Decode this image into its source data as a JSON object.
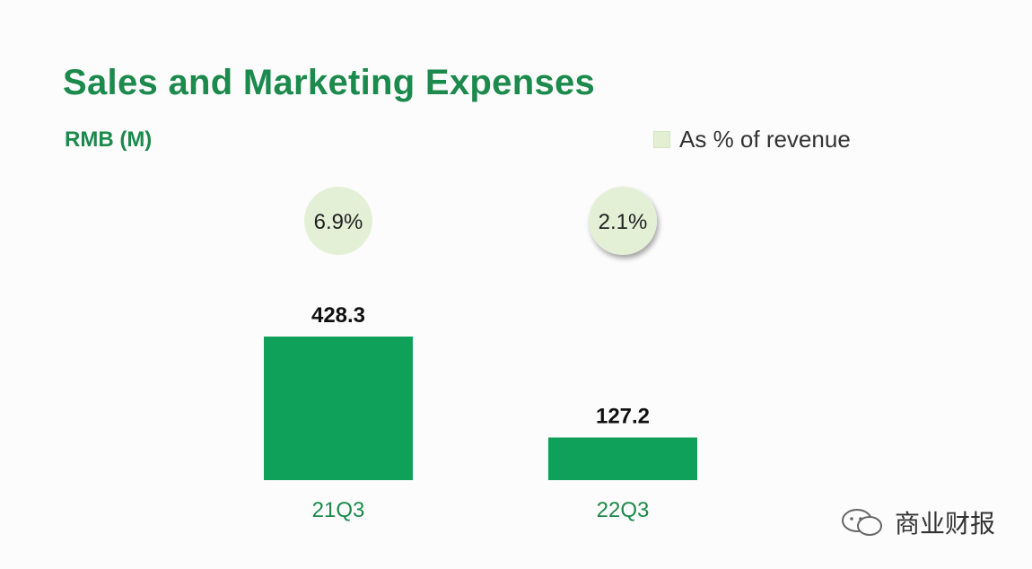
{
  "slide": {
    "title": "Sales and Marketing Expenses",
    "unit_label": "RMB (M)",
    "legend_label": "As % of revenue",
    "watermark": "商业财报"
  },
  "colors": {
    "bar": "#0fa15a",
    "bubble": "#e4f0d6",
    "title": "#1c8a4c",
    "legend_swatch": "#e3efd3"
  },
  "chart_data": {
    "type": "bar",
    "title": "Sales and Marketing Expenses",
    "ylabel": "RMB (M)",
    "categories": [
      "21Q3",
      "22Q3"
    ],
    "values": [
      428.3,
      127.2
    ],
    "value_labels": [
      "428.3",
      "127.2"
    ],
    "pct_of_revenue": [
      "6.9%",
      "2.1%"
    ],
    "legend": [
      "As % of revenue"
    ],
    "grid": false
  }
}
